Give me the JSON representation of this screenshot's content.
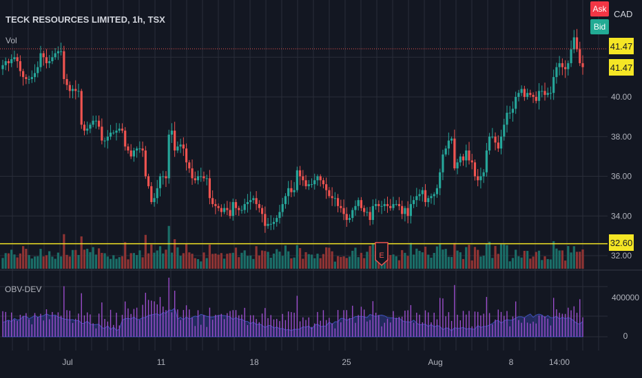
{
  "header": {
    "symbol_title": "TECK RESOURCES LIMITED, 1h, TSX",
    "volume_label": "Vol",
    "currency": "CAD",
    "ask_label": "Ask",
    "bid_label": "Bid"
  },
  "price_tags": {
    "ask": "41.47",
    "bid": "41.47",
    "horizontal_line": "32.60"
  },
  "earnings_marker": "E",
  "indicator": {
    "name": "OBV-DEV"
  },
  "colors": {
    "background": "#131722",
    "grid": "#2a2e39",
    "up": "#26a69a",
    "down": "#ef5350",
    "volume_up": "#1b6e68",
    "volume_down": "#8f3434",
    "horizontal_line": "#f5e625",
    "obv_histogram": "#9c4dcc",
    "obv_area": "#2f3d8f",
    "ask_badge": "#f23645",
    "bid_badge": "#22ab94"
  },
  "chart_data": {
    "type": "candlestick",
    "title": "TECK RESOURCES LIMITED, 1h, TSX",
    "price_axis_ticks": [
      "32.00",
      "34.00",
      "36.00",
      "38.00",
      "40.00"
    ],
    "price_range": [
      31.8,
      43.5
    ],
    "x_axis_ticks": [
      "Jul",
      "11",
      "18",
      "25",
      "Aug",
      "8",
      "14:00"
    ],
    "horizontal_line_price": 32.6,
    "last_price": 41.47,
    "obv_axis_ticks": [
      "400000",
      "0"
    ],
    "closes": [
      41.6,
      41.8,
      41.7,
      41.9,
      42.0,
      41.8,
      41.3,
      41.0,
      40.9,
      40.9,
      41.0,
      41.2,
      41.5,
      42.2,
      42.0,
      41.7,
      41.8,
      42.0,
      42.2,
      42.3,
      42.3,
      40.9,
      40.6,
      40.3,
      40.4,
      40.3,
      40.3,
      38.6,
      38.3,
      38.4,
      38.6,
      38.8,
      38.8,
      38.5,
      37.8,
      37.8,
      38.0,
      38.2,
      38.2,
      38.3,
      38.4,
      38.3,
      37.5,
      37.3,
      37.0,
      37.3,
      37.4,
      37.4,
      37.3,
      36.0,
      35.5,
      34.7,
      34.9,
      35.4,
      36.0,
      36.0,
      35.9,
      38.1,
      38.3,
      37.3,
      37.5,
      37.6,
      37.4,
      36.7,
      36.4,
      35.9,
      35.8,
      36.0,
      36.0,
      35.9,
      35.9,
      34.9,
      34.6,
      34.5,
      34.4,
      34.2,
      34.4,
      34.3,
      34.0,
      34.7,
      34.4,
      34.3,
      34.3,
      34.6,
      34.7,
      34.8,
      34.9,
      34.6,
      34.4,
      34.1,
      33.5,
      33.6,
      33.6,
      33.7,
      33.9,
      34.2,
      34.6,
      35.0,
      35.4,
      35.2,
      35.3,
      36.3,
      36.0,
      35.8,
      35.5,
      35.6,
      35.6,
      35.8,
      36.0,
      35.8,
      35.6,
      35.3,
      35.0,
      34.9,
      34.9,
      34.5,
      34.4,
      34.1,
      33.8,
      33.9,
      34.3,
      34.5,
      34.8,
      34.4,
      34.2,
      34.2,
      33.8,
      34.5,
      34.6,
      34.5,
      34.5,
      34.6,
      34.5,
      34.4,
      34.6,
      34.6,
      34.5,
      34.1,
      34.4,
      34.0,
      34.6,
      34.8,
      35.0,
      35.1,
      35.3,
      34.7,
      34.9,
      35.0,
      35.1,
      35.4,
      36.2,
      37.1,
      37.4,
      37.8,
      37.9,
      36.4,
      36.7,
      37.0,
      36.8,
      37.3,
      36.8,
      36.7,
      36.0,
      35.8,
      36.0,
      36.2,
      37.3,
      38.0,
      38.0,
      37.7,
      37.4,
      38.0,
      38.6,
      39.2,
      39.2,
      39.4,
      40.0,
      40.2,
      40.4,
      40.0,
      40.2,
      40.1,
      40.0,
      39.8,
      40.3,
      40.3,
      40.1,
      40.2,
      40.2,
      41.0,
      41.5,
      41.7,
      41.5,
      41.4,
      41.7,
      42.4,
      43.0,
      42.4,
      41.7,
      41.5
    ]
  }
}
